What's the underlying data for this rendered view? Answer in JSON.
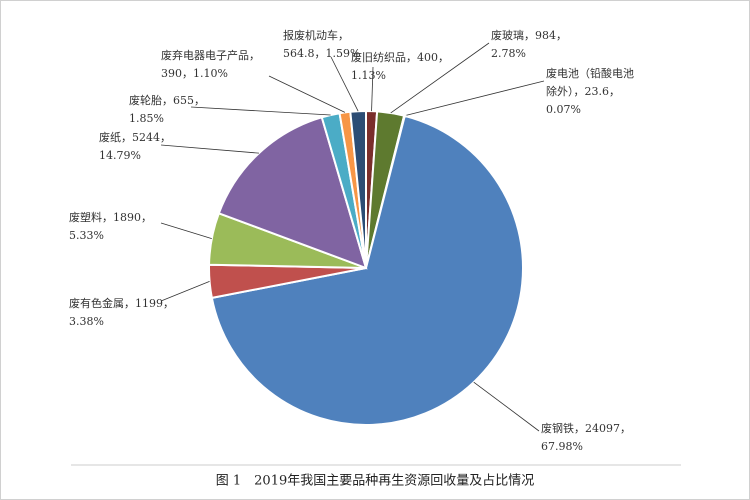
{
  "chart_data": {
    "type": "pie",
    "title": "图 1　2019年我国主要品种再生资源回收量及占比情况",
    "categories": [
      "废旧纺织品",
      "废玻璃",
      "废电池（铅酸电池除外）",
      "废钢铁",
      "废有色金属",
      "废塑料",
      "废纸",
      "废轮胎",
      "废弃电器电子产品",
      "报废机动车"
    ],
    "values": [
      400,
      984,
      23.6,
      24097,
      1199,
      1890,
      5244,
      655,
      390,
      564.8
    ],
    "labels": [
      [
        "废旧纺织品，400，",
        "1.13%"
      ],
      [
        "废玻璃，984，",
        "2.78%"
      ],
      [
        "废电池（铅酸电池",
        "除外），23.6，",
        "0.07%"
      ],
      [
        "废钢铁，24097，",
        "67.98%"
      ],
      [
        "废有色金属，1199，",
        "3.38%"
      ],
      [
        "废塑料，1890，",
        "5.33%"
      ],
      [
        "废纸，5244，",
        "14.79%"
      ],
      [
        "废轮胎，655，",
        "1.85%"
      ],
      [
        "废弃电器电子产品，",
        "390，1.10%"
      ],
      [
        "报废机动车，",
        "564.8，1.59%"
      ]
    ],
    "colors": [
      "#7a2e2c",
      "#5e7a2f",
      "#9fb8d6",
      "#4f81bd",
      "#c0504d",
      "#9bbb59",
      "#8064a2",
      "#4bacc6",
      "#f79646",
      "#2c4d75"
    ]
  }
}
